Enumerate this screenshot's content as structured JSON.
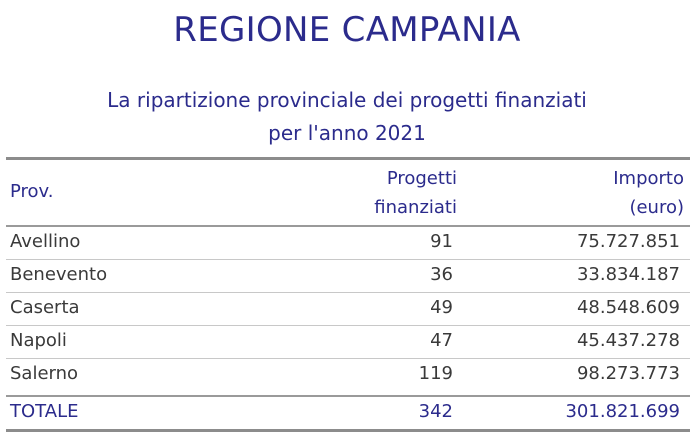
{
  "title": "REGIONE CAMPANIA",
  "subtitle": {
    "line1": "La ripartizione provinciale dei progetti finanziati",
    "line2": "per  l'anno 2021"
  },
  "table": {
    "headers": {
      "prov": "Prov.",
      "progetti_line1": "Progetti",
      "progetti_line2": "finanziati",
      "importo_line1": "Importo",
      "importo_line2": "(euro)"
    },
    "rows": [
      {
        "prov": "Avellino",
        "progetti": "91",
        "importo": "75.727.851"
      },
      {
        "prov": "Benevento",
        "progetti": "36",
        "importo": "33.834.187"
      },
      {
        "prov": "Caserta",
        "progetti": "49",
        "importo": "48.548.609"
      },
      {
        "prov": "Napoli",
        "progetti": "47",
        "importo": "45.437.278"
      },
      {
        "prov": "Salerno",
        "progetti": "119",
        "importo": "98.273.773"
      }
    ],
    "total": {
      "label": "TOTALE",
      "progetti": "342",
      "importo": "301.821.699"
    }
  },
  "colors": {
    "heading": "#2b2b8c",
    "body_text": "#3a3a3a",
    "rule": "#8c8c8c"
  }
}
